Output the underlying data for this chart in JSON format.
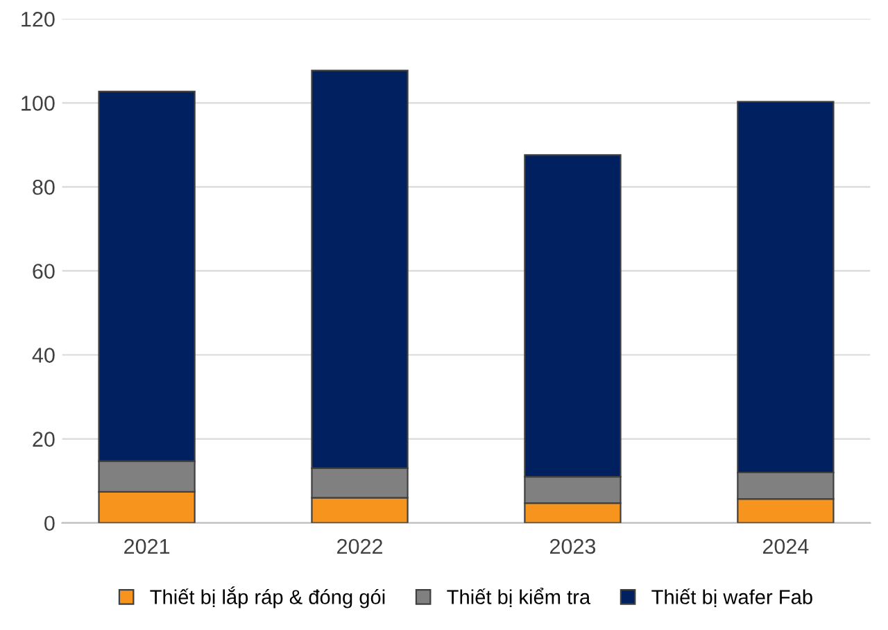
{
  "chart_data": {
    "type": "bar",
    "stacked": true,
    "categories": [
      "2021",
      "2022",
      "2023",
      "2024"
    ],
    "series": [
      {
        "name": "Thiết bị lắp ráp & đóng gói",
        "color": "#f7941d",
        "values": [
          7.4,
          6.0,
          4.7,
          5.7
        ]
      },
      {
        "name": "Thiết bị kiểm tra",
        "color": "#808080",
        "values": [
          7.3,
          7.0,
          6.3,
          6.3
        ]
      },
      {
        "name": "Thiết bị wafer Fab",
        "color": "#002060",
        "values": [
          88.0,
          94.7,
          76.6,
          88.3
        ]
      }
    ],
    "ylim": [
      0,
      120
    ],
    "yticks": [
      0,
      20,
      40,
      60,
      80,
      100,
      120
    ],
    "grid": "y",
    "legend": "bottom"
  }
}
